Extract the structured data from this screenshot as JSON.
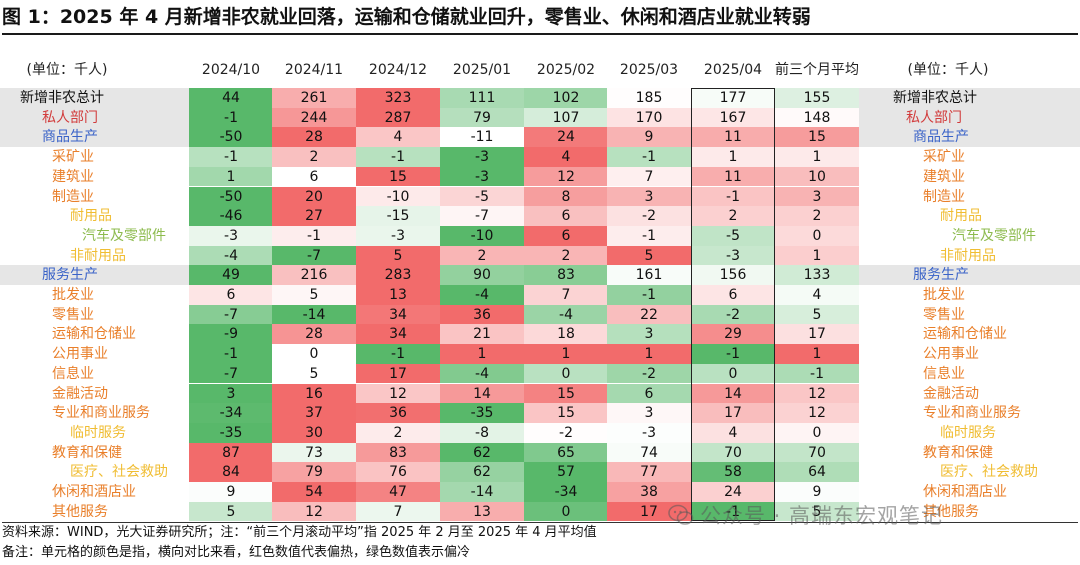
{
  "title": "图 1：2025 年 4 月新增非农就业回落，运输和仓储就业回升，零售业、休闲和酒店业就业转弱",
  "chart_data": {
    "type": "table",
    "unit_label": "(单位：千人)",
    "columns": [
      "2024/10",
      "2024/11",
      "2024/12",
      "2025/01",
      "2025/02",
      "2025/03",
      "2025/04",
      "前三个月平均"
    ],
    "highlight_column": "2025/04",
    "color_legend": {
      "hot": "#f26b6b",
      "cold": "#58b86a",
      "neutral": "#ffffff"
    },
    "rows": [
      {
        "label": "新增非农总计",
        "level": 0,
        "color": "#111111",
        "gray": true,
        "values": [
          44,
          261,
          323,
          111,
          102,
          185,
          177,
          155
        ]
      },
      {
        "label": "私人部门",
        "level": 1,
        "color": "#d23c3c",
        "gray": true,
        "values": [
          -1,
          244,
          287,
          79,
          107,
          170,
          167,
          148
        ]
      },
      {
        "label": "商品生产",
        "level": 2,
        "color": "#3a63c8",
        "gray": true,
        "values": [
          -50,
          28,
          4,
          -11,
          24,
          9,
          11,
          15
        ]
      },
      {
        "label": "采矿业",
        "level": 3,
        "color": "#e97f2a",
        "gray": false,
        "values": [
          -1,
          2,
          -1,
          -3,
          4,
          -1,
          1,
          1
        ]
      },
      {
        "label": "建筑业",
        "level": 3,
        "color": "#e97f2a",
        "gray": false,
        "values": [
          1,
          6,
          15,
          -3,
          12,
          7,
          11,
          10
        ]
      },
      {
        "label": "制造业",
        "level": 3,
        "color": "#e97f2a",
        "gray": false,
        "values": [
          -50,
          20,
          -10,
          -5,
          8,
          3,
          -1,
          3
        ]
      },
      {
        "label": "耐用品",
        "level": 4,
        "color": "#f0bd33",
        "gray": false,
        "values": [
          -46,
          27,
          -15,
          -7,
          6,
          -2,
          2,
          2
        ]
      },
      {
        "label": "汽车及零部件",
        "level": 5,
        "color": "#8dbb4e",
        "gray": false,
        "values": [
          -3,
          -1,
          -3,
          -10,
          6,
          -1,
          -5,
          0
        ]
      },
      {
        "label": "非耐用品",
        "level": 4,
        "color": "#f0bd33",
        "gray": false,
        "values": [
          -4,
          -7,
          5,
          2,
          2,
          5,
          -3,
          1
        ]
      },
      {
        "label": "服务生产",
        "level": 2,
        "color": "#3a63c8",
        "gray": true,
        "values": [
          49,
          216,
          283,
          90,
          83,
          161,
          156,
          133
        ]
      },
      {
        "label": "批发业",
        "level": 3,
        "color": "#e97f2a",
        "gray": false,
        "values": [
          6,
          5,
          13,
          -4,
          7,
          -1,
          6,
          4
        ]
      },
      {
        "label": "零售业",
        "level": 3,
        "color": "#e97f2a",
        "gray": false,
        "values": [
          -7,
          -14,
          34,
          36,
          -4,
          22,
          -2,
          5
        ]
      },
      {
        "label": "运输和仓储业",
        "level": 3,
        "color": "#e97f2a",
        "gray": false,
        "values": [
          -9,
          28,
          34,
          21,
          18,
          3,
          29,
          17
        ]
      },
      {
        "label": "公用事业",
        "level": 3,
        "color": "#e97f2a",
        "gray": false,
        "values": [
          -1,
          0,
          -1,
          1,
          1,
          1,
          -1,
          1
        ]
      },
      {
        "label": "信息业",
        "level": 3,
        "color": "#e97f2a",
        "gray": false,
        "values": [
          -7,
          5,
          17,
          -4,
          0,
          -2,
          0,
          -1
        ]
      },
      {
        "label": "金融活动",
        "level": 3,
        "color": "#e97f2a",
        "gray": false,
        "values": [
          3,
          16,
          12,
          14,
          15,
          6,
          14,
          12
        ]
      },
      {
        "label": "专业和商业服务",
        "level": 3,
        "color": "#e97f2a",
        "gray": false,
        "values": [
          -34,
          37,
          36,
          -35,
          15,
          3,
          17,
          12
        ]
      },
      {
        "label": "临时服务",
        "level": 4,
        "color": "#f0bd33",
        "gray": false,
        "values": [
          -35,
          30,
          2,
          -8,
          -2,
          -3,
          4,
          0
        ]
      },
      {
        "label": "教育和保健",
        "level": 3,
        "color": "#e97f2a",
        "gray": false,
        "values": [
          87,
          73,
          83,
          62,
          65,
          74,
          70,
          70
        ]
      },
      {
        "label": "医疗、社会救助",
        "level": 4,
        "color": "#f0bd33",
        "gray": false,
        "values": [
          84,
          79,
          76,
          62,
          57,
          77,
          58,
          64
        ]
      },
      {
        "label": "休闲和酒店业",
        "level": 3,
        "color": "#e97f2a",
        "gray": false,
        "values": [
          9,
          54,
          47,
          -14,
          -34,
          38,
          24,
          9
        ]
      },
      {
        "label": "其他服务",
        "level": 3,
        "color": "#e97f2a",
        "gray": false,
        "values": [
          5,
          12,
          7,
          13,
          0,
          17,
          -1,
          5
        ]
      }
    ]
  },
  "footnotes": {
    "source": "资料来源：WIND，光大证券研究所；注：“前三个月滚动平均”指 2025 年 2 月至 2025 年 4 月平均值",
    "remark": "备注：单元格的颜色是指，横向对比来看，红色数值代表偏热，绿色数值表示偏冷"
  },
  "watermark": "公众号 · 高瑞东宏观笔记"
}
